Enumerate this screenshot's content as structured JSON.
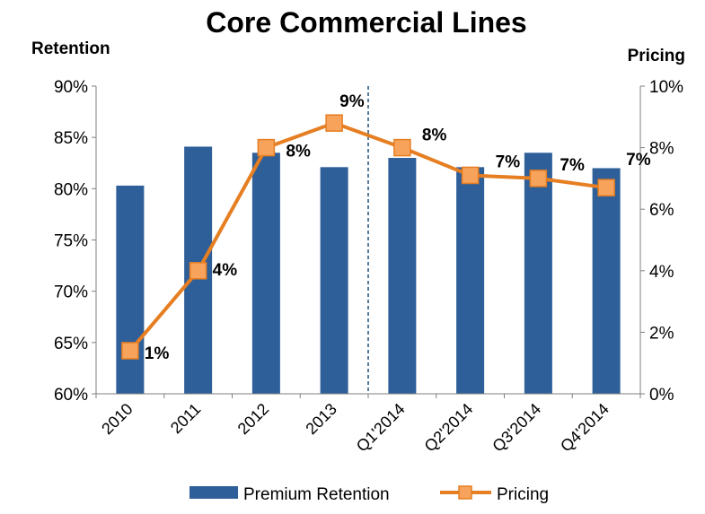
{
  "chart_data": {
    "type": "bar",
    "title": "Core Commercial Lines",
    "ylabel": "Retention",
    "y2label": "Pricing",
    "categories": [
      "2010",
      "2011",
      "2012",
      "2013",
      "Q1'2014",
      "Q2'2014",
      "Q3'2014",
      "Q4'2014"
    ],
    "ylim": [
      60,
      90
    ],
    "yticks": [
      "60%",
      "65%",
      "70%",
      "75%",
      "80%",
      "85%",
      "90%"
    ],
    "y2lim": [
      0,
      10
    ],
    "y2ticks": [
      "0%",
      "2%",
      "4%",
      "6%",
      "8%",
      "10%"
    ],
    "series": [
      {
        "name": "Premium Retention",
        "type": "bar",
        "axis": "left",
        "color": "#2E5F99",
        "values": [
          80.3,
          84.1,
          83.5,
          82.1,
          83.0,
          82.1,
          83.5,
          82.0
        ]
      },
      {
        "name": "Pricing",
        "type": "line",
        "axis": "right",
        "color": "#E67E22",
        "marker_fill": "#F7A35C",
        "values": [
          1.4,
          4.0,
          8.0,
          8.8,
          8.0,
          7.1,
          7.0,
          6.7
        ],
        "labels": [
          "1%",
          "4%",
          "8%",
          "9%",
          "8%",
          "7%",
          "7%",
          "7%"
        ]
      }
    ],
    "divider_after_category": "2013",
    "legend_position": "bottom",
    "grid": false
  }
}
